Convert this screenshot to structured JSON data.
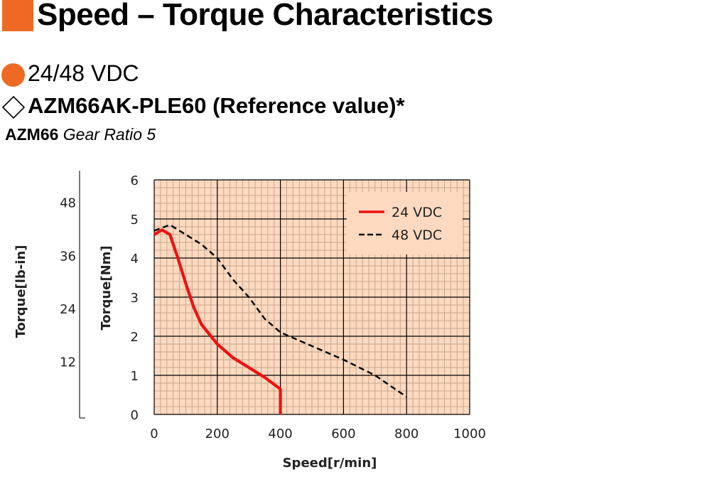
{
  "header": {
    "title": "Speed – Torque Characteristics",
    "voltage": "24/48 VDC",
    "model": "AZM66AK-PLE60 (Reference value)*",
    "sub_model": "AZM66",
    "sub_ratio": "Gear Ratio 5"
  },
  "colors": {
    "accent": "#ee6a24",
    "plot_bg": "#fcd9bf",
    "grid_minor": "#c9a88e",
    "grid_major": "#000000",
    "series_24": "#ee1111",
    "series_48": "#000000"
  },
  "chart_data": {
    "type": "line",
    "xlabel": "Speed[r/min]",
    "ylabel": "Torque[Nm]",
    "ylabel_secondary": "Torque[lb-in]",
    "xlim": [
      0,
      1000
    ],
    "ylim": [
      0,
      6
    ],
    "x_ticks": [
      0,
      200,
      400,
      600,
      800,
      1000
    ],
    "y_ticks": [
      0,
      1,
      2,
      3,
      4,
      5,
      6
    ],
    "y2_ticks": [
      12,
      24,
      36,
      48
    ],
    "grid": true,
    "legend_position": "top-right",
    "series": [
      {
        "name": "24 VDC",
        "color": "#ee1111",
        "style": "solid",
        "points": [
          [
            0,
            4.6
          ],
          [
            25,
            4.72
          ],
          [
            50,
            4.6
          ],
          [
            75,
            4.0
          ],
          [
            100,
            3.35
          ],
          [
            125,
            2.75
          ],
          [
            150,
            2.3
          ],
          [
            200,
            1.8
          ],
          [
            250,
            1.45
          ],
          [
            300,
            1.2
          ],
          [
            350,
            0.95
          ],
          [
            400,
            0.65
          ],
          [
            400,
            0
          ]
        ]
      },
      {
        "name": "48 VDC",
        "color": "#000000",
        "style": "dashed",
        "points": [
          [
            0,
            4.7
          ],
          [
            50,
            4.85
          ],
          [
            100,
            4.6
          ],
          [
            150,
            4.35
          ],
          [
            200,
            4.0
          ],
          [
            250,
            3.45
          ],
          [
            300,
            3.0
          ],
          [
            350,
            2.45
          ],
          [
            400,
            2.1
          ],
          [
            500,
            1.75
          ],
          [
            600,
            1.4
          ],
          [
            700,
            1.0
          ],
          [
            800,
            0.45
          ]
        ]
      }
    ]
  }
}
